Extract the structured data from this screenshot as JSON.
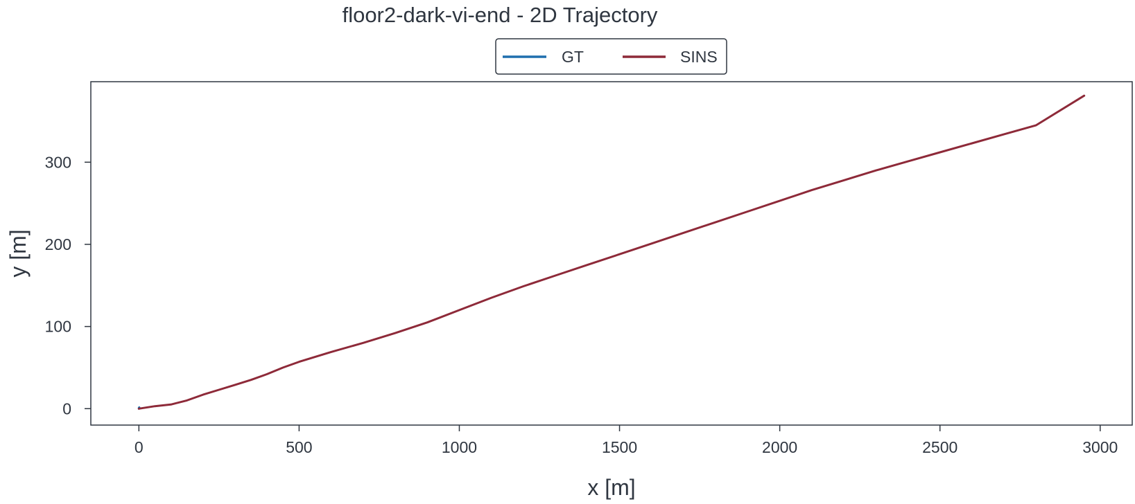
{
  "chart_data": {
    "type": "line",
    "title": "floor2-dark-vi-end - 2D Trajectory",
    "xlabel": "x [m]",
    "ylabel": "y [m]",
    "xlim": [
      -150,
      3100
    ],
    "ylim": [
      -20,
      398
    ],
    "x_ticks": [
      0,
      500,
      1000,
      1500,
      2000,
      2500,
      3000
    ],
    "y_ticks": [
      0,
      100,
      200,
      300
    ],
    "grid": false,
    "legend": {
      "placement": "top-center-outside",
      "columns": 2
    },
    "series": [
      {
        "name": "GT",
        "color": "#1f6fae",
        "x": [
          0,
          1,
          2,
          1,
          0
        ],
        "y": [
          0,
          0.5,
          1,
          1.5,
          1
        ]
      },
      {
        "name": "SINS",
        "color": "#8e2a39",
        "x": [
          0,
          50,
          100,
          150,
          200,
          250,
          300,
          350,
          400,
          450,
          500,
          600,
          700,
          800,
          900,
          1000,
          1100,
          1200,
          1300,
          1400,
          1500,
          1600,
          1700,
          1800,
          1900,
          2000,
          2100,
          2200,
          2300,
          2400,
          2500,
          2600,
          2700,
          2800,
          2950
        ],
        "y": [
          0,
          3,
          5,
          10,
          17,
          23,
          29,
          35,
          42,
          50,
          57,
          69,
          80,
          92,
          105,
          120,
          135,
          149,
          162,
          175,
          188,
          201,
          214,
          227,
          240,
          253,
          266,
          278,
          290,
          301,
          312,
          323,
          334,
          345,
          381
        ]
      }
    ]
  }
}
